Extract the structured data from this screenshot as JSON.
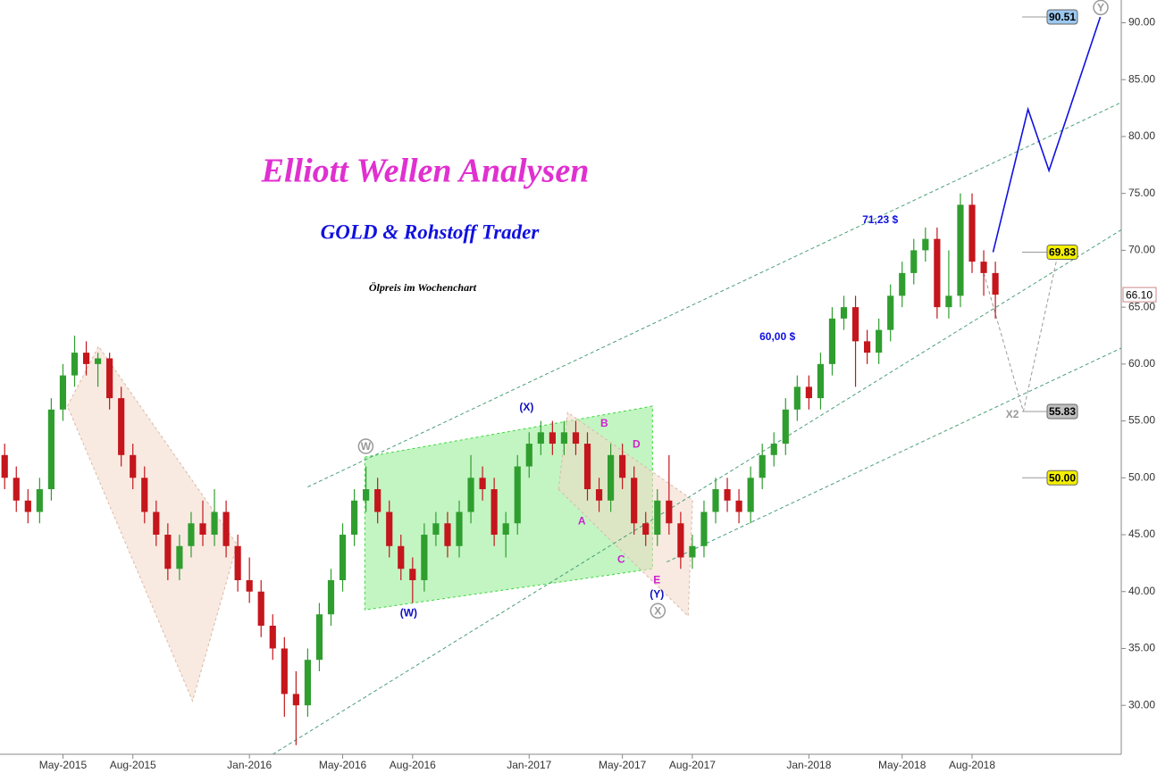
{
  "chart_data": {
    "type": "candlestick",
    "title": "Elliott Wellen Analysen",
    "subtitle": "GOLD & Rohstoff Trader",
    "caption": "Ölpreis im Wochenchart",
    "up_color": "#2f9e2f",
    "down_color": "#c4161c",
    "xlim": [
      1.3,
      49.4
    ],
    "ylim": [
      25.7,
      92.0
    ],
    "xticks": [
      {
        "value": 4,
        "label": "May-2015"
      },
      {
        "value": 7,
        "label": "Aug-2015"
      },
      {
        "value": 12,
        "label": "Jan-2016"
      },
      {
        "value": 16,
        "label": "May-2016"
      },
      {
        "value": 19,
        "label": "Aug-2016"
      },
      {
        "value": 24,
        "label": "Jan-2017"
      },
      {
        "value": 28,
        "label": "May-2017"
      },
      {
        "value": 31,
        "label": "Aug-2017"
      },
      {
        "value": 36,
        "label": "Jan-2018"
      },
      {
        "value": 40,
        "label": "May-2018"
      },
      {
        "value": 43,
        "label": "Aug-2018"
      }
    ],
    "yticks": [
      {
        "value": 30,
        "label": "30.00"
      },
      {
        "value": 35,
        "label": "35.00"
      },
      {
        "value": 40,
        "label": "40.00"
      },
      {
        "value": 45,
        "label": "45.00"
      },
      {
        "value": 50,
        "label": "50.00"
      },
      {
        "value": 55,
        "label": "55.00"
      },
      {
        "value": 60,
        "label": "60.00"
      },
      {
        "value": 65,
        "label": "65.00"
      },
      {
        "value": 70,
        "label": "70.00"
      },
      {
        "value": 75,
        "label": "75.00"
      },
      {
        "value": 80,
        "label": "80.00"
      },
      {
        "value": 85,
        "label": "85.00"
      },
      {
        "value": 90,
        "label": "90.00"
      }
    ],
    "candles": [
      [
        1.5,
        52,
        53,
        49,
        50
      ],
      [
        2,
        50,
        51,
        47,
        48
      ],
      [
        2.5,
        48,
        49,
        46,
        47
      ],
      [
        3,
        47,
        50,
        46,
        49
      ],
      [
        3.5,
        49,
        57,
        48,
        56
      ],
      [
        4,
        56,
        60,
        55,
        59
      ],
      [
        4.5,
        59,
        62.5,
        58,
        61
      ],
      [
        5,
        61,
        62,
        59,
        60
      ],
      [
        5.5,
        60,
        61,
        58,
        60.5
      ],
      [
        6,
        60.5,
        61,
        56,
        57
      ],
      [
        6.5,
        57,
        58,
        51,
        52
      ],
      [
        7,
        52,
        53,
        49,
        50
      ],
      [
        7.5,
        50,
        51,
        46,
        47
      ],
      [
        8,
        47,
        48,
        44,
        45
      ],
      [
        8.5,
        45,
        46,
        41,
        42
      ],
      [
        9,
        42,
        45,
        41,
        44
      ],
      [
        9.5,
        44,
        47,
        43,
        46
      ],
      [
        10,
        46,
        48,
        44,
        45
      ],
      [
        10.5,
        45,
        49,
        44,
        47
      ],
      [
        11,
        47,
        48,
        43,
        44
      ],
      [
        11.5,
        44,
        45,
        40,
        41
      ],
      [
        12,
        41,
        43,
        39,
        40
      ],
      [
        12.5,
        40,
        41,
        36,
        37
      ],
      [
        13,
        37,
        38,
        34,
        35
      ],
      [
        13.5,
        35,
        36,
        29,
        31
      ],
      [
        14,
        31,
        33,
        26.5,
        30
      ],
      [
        14.5,
        30,
        35,
        29,
        34
      ],
      [
        15,
        34,
        39,
        33,
        38
      ],
      [
        15.5,
        38,
        42,
        37,
        41
      ],
      [
        16,
        41,
        46,
        40,
        45
      ],
      [
        16.5,
        45,
        49,
        44,
        48
      ],
      [
        17,
        48,
        51,
        47,
        49
      ],
      [
        17.5,
        49,
        50,
        46,
        47
      ],
      [
        18,
        47,
        48,
        43,
        44
      ],
      [
        18.5,
        44,
        45,
        41,
        42
      ],
      [
        19,
        42,
        43,
        39,
        41
      ],
      [
        19.5,
        41,
        46,
        40,
        45
      ],
      [
        20,
        45,
        47,
        44,
        46
      ],
      [
        20.5,
        46,
        47,
        43,
        44
      ],
      [
        21,
        44,
        48,
        43,
        47
      ],
      [
        21.5,
        47,
        52,
        46,
        50
      ],
      [
        22,
        50,
        51,
        48,
        49
      ],
      [
        22.5,
        49,
        50,
        44,
        45
      ],
      [
        23,
        45,
        47,
        43,
        46
      ],
      [
        23.5,
        46,
        52,
        45,
        51
      ],
      [
        24,
        51,
        54,
        50,
        53
      ],
      [
        24.5,
        53,
        55,
        52,
        54
      ],
      [
        25,
        54,
        55,
        52,
        53
      ],
      [
        25.5,
        53,
        55,
        52,
        54
      ],
      [
        26,
        54,
        55,
        52,
        53
      ],
      [
        26.5,
        53,
        54,
        48,
        49
      ],
      [
        27,
        49,
        50,
        47,
        48
      ],
      [
        27.5,
        48,
        53,
        47,
        52
      ],
      [
        28,
        52,
        53,
        49,
        50
      ],
      [
        28.5,
        50,
        51,
        45,
        46
      ],
      [
        29,
        46,
        47,
        44,
        45
      ],
      [
        29.5,
        45,
        49,
        44,
        48
      ],
      [
        30,
        48,
        52,
        45,
        46
      ],
      [
        30.5,
        46,
        47,
        42,
        43
      ],
      [
        31,
        43,
        45,
        42,
        44
      ],
      [
        31.5,
        44,
        48,
        43,
        47
      ],
      [
        32,
        47,
        50,
        46,
        49
      ],
      [
        32.5,
        49,
        50,
        47,
        48
      ],
      [
        33,
        48,
        49,
        46,
        47
      ],
      [
        33.5,
        47,
        51,
        46,
        50
      ],
      [
        34,
        50,
        53,
        49,
        52
      ],
      [
        34.5,
        52,
        54,
        51,
        53
      ],
      [
        35,
        53,
        57,
        52,
        56
      ],
      [
        35.5,
        56,
        59,
        55,
        58
      ],
      [
        36,
        58,
        59,
        56,
        57
      ],
      [
        36.5,
        57,
        61,
        56,
        60
      ],
      [
        37,
        60,
        65,
        59,
        64
      ],
      [
        37.5,
        64,
        66,
        63,
        65
      ],
      [
        38,
        65,
        66,
        58,
        62
      ],
      [
        38.5,
        62,
        63,
        60,
        61
      ],
      [
        39,
        61,
        64,
        60,
        63
      ],
      [
        39.5,
        63,
        67,
        62,
        66
      ],
      [
        40,
        66,
        69,
        65,
        68
      ],
      [
        40.5,
        68,
        71,
        67,
        70
      ],
      [
        41,
        70,
        72,
        69,
        71
      ],
      [
        41.5,
        71,
        72,
        64,
        65
      ],
      [
        42,
        65,
        70,
        64,
        66
      ],
      [
        42.5,
        66,
        75,
        65,
        74
      ],
      [
        43,
        74,
        75,
        68,
        69
      ],
      [
        43.5,
        69,
        70,
        66,
        68
      ],
      [
        44,
        68,
        69,
        64,
        66.1
      ]
    ],
    "zones": [
      {
        "color": "#f3d9c8",
        "x": [
          4.19,
          5.53,
          11.47,
          9.56
        ],
        "y": [
          56.3,
          61.56,
          44.13,
          30.38
        ]
      },
      {
        "color": "#8fec8f",
        "x": [
          16.95,
          29.29,
          29.29,
          16.95
        ],
        "y": [
          51.82,
          56.3,
          42.0,
          38.39
        ]
      },
      {
        "color": "#f3d9c8",
        "x": [
          25.26,
          25.65,
          31.01,
          30.82
        ],
        "y": [
          48.99,
          55.75,
          48.05,
          37.84
        ]
      }
    ],
    "lines": [
      {
        "color": "#4a9e78",
        "dashed": true,
        "x": [
          14.5,
          49.4
        ],
        "y": [
          49.2,
          83.0
        ]
      },
      {
        "color": "#4a9e78",
        "dashed": true,
        "x": [
          13.0,
          49.4
        ],
        "y": [
          25.7,
          71.8
        ]
      },
      {
        "color": "#4a9e78",
        "dashed": true,
        "x": [
          29.9,
          49.4
        ],
        "y": [
          42.6,
          61.4
        ]
      },
      {
        "color": "#1010e0",
        "dashed": false,
        "x": [
          43.9,
          45.4,
          46.3,
          48.5
        ],
        "y": [
          69.83,
          82.4,
          77.0,
          90.51
        ]
      },
      {
        "color": "#999999",
        "dashed": true,
        "x": [
          43.5,
          45.2,
          46.7
        ],
        "y": [
          68.0,
          55.83,
          69.83
        ]
      }
    ],
    "annotations": [
      {
        "text": "(X)",
        "color": "#1010c0",
        "x": 23.89,
        "y": 56.14
      },
      {
        "text": "(W)",
        "color": "#1010c0",
        "x": 18.83,
        "y": 38.07
      },
      {
        "text": "(Y)",
        "color": "#1010c0",
        "x": 29.48,
        "y": 39.73
      },
      {
        "text": "A",
        "color": "#d020d0",
        "x": 26.26,
        "y": 46.17
      },
      {
        "text": "B",
        "color": "#d020d0",
        "x": 27.22,
        "y": 54.73
      },
      {
        "text": "C",
        "color": "#d020d0",
        "x": 27.95,
        "y": 42.79
      },
      {
        "text": "D",
        "color": "#d020d0",
        "x": 28.6,
        "y": 52.92
      },
      {
        "text": "E",
        "color": "#d020d0",
        "x": 29.48,
        "y": 40.98
      },
      {
        "text": "X2",
        "color": "#999999",
        "x": 44.73,
        "y": 55.51
      },
      {
        "text": "71,23 $",
        "color": "#1010e0",
        "x": 39.06,
        "y": 72.64
      },
      {
        "text": "60,00 $",
        "color": "#1010e0",
        "x": 34.65,
        "y": 62.35
      }
    ],
    "circled": [
      {
        "text": "W",
        "x": 16.99,
        "y": 52.77
      },
      {
        "text": "X",
        "x": 29.52,
        "y": 38.31
      },
      {
        "text": "Y",
        "x": 48.52,
        "y": 91.34
      }
    ],
    "price_labels": [
      {
        "value": 90.51,
        "color": "#9cc8f0"
      },
      {
        "value": 69.83,
        "color": "#f4f000"
      },
      {
        "value": 55.83,
        "color": "#c0c0c0"
      },
      {
        "value": {
          "value": 50,
          "label": "50.00"
        },
        "color": "#f4f000"
      }
    ],
    "last_price": {
      "value": 66.1,
      "label": "66.10"
    }
  }
}
